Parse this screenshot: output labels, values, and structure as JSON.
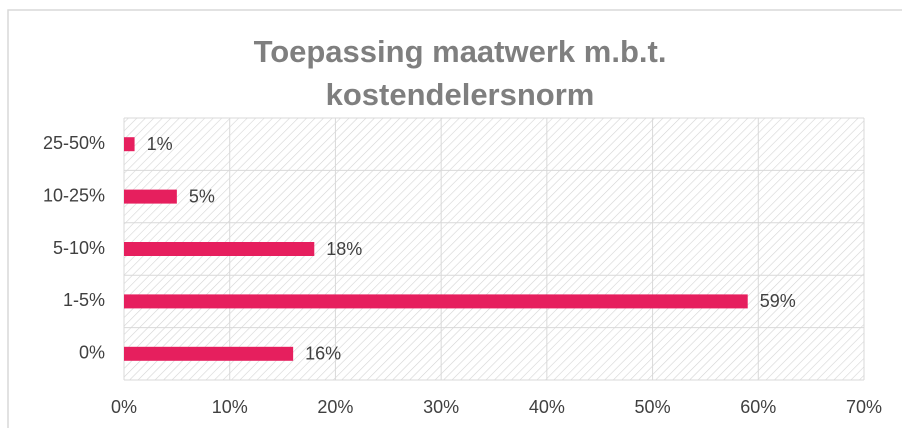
{
  "chart_data": {
    "type": "bar",
    "orientation": "horizontal",
    "title": "Toepassing maatwerk m.b.t. kostendelersnorm",
    "categories": [
      "25-50%",
      "10-25%",
      "5-10%",
      "1-5%",
      "0%"
    ],
    "values": [
      1,
      5,
      18,
      59,
      16
    ],
    "value_labels": [
      "1%",
      "5%",
      "18%",
      "59%",
      "16%"
    ],
    "color": "#e61f5e",
    "xlim": [
      0,
      70
    ],
    "xticks": [
      {
        "value": 0,
        "label": "0%"
      },
      {
        "value": 10,
        "label": "10%"
      },
      {
        "value": 20,
        "label": "20%"
      },
      {
        "value": 30,
        "label": "30%"
      },
      {
        "value": 40,
        "label": "40%"
      },
      {
        "value": 50,
        "label": "50%"
      },
      {
        "value": 60,
        "label": "60%"
      },
      {
        "value": 70,
        "label": "70%"
      }
    ],
    "grid": true
  }
}
